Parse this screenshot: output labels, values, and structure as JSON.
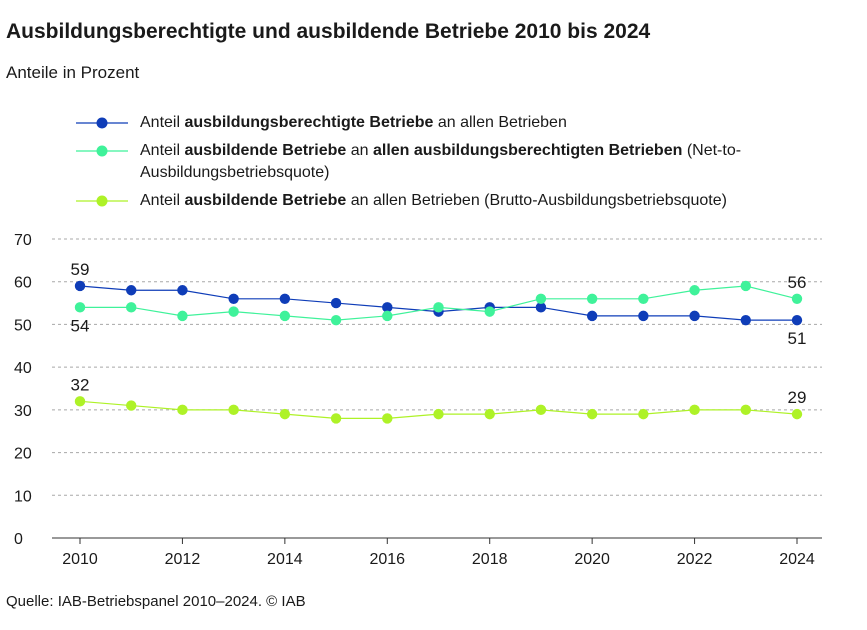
{
  "header": {
    "title": "Ausbildungsberechtigte und ausbildende Betriebe 2010 bis 2024",
    "subtitle": "Anteile in Prozent"
  },
  "legend": {
    "items": [
      {
        "parts": [
          {
            "t": "Anteil ",
            "b": false
          },
          {
            "t": "ausbildungsberechtigte Betriebe",
            "b": true
          },
          {
            "t": " an allen Betrieben",
            "b": false
          }
        ]
      },
      {
        "parts": [
          {
            "t": "Anteil ",
            "b": false
          },
          {
            "t": "ausbildende Betriebe",
            "b": true
          },
          {
            "t": " an ",
            "b": false
          },
          {
            "t": "allen ausbildungsberechtigten Betrieben",
            "b": true
          },
          {
            "t": " (Net-to-Ausbildungsbetriebsquote)",
            "b": false
          }
        ]
      },
      {
        "parts": [
          {
            "t": "Anteil ",
            "b": false
          },
          {
            "t": "ausbildende Betriebe",
            "b": true
          },
          {
            "t": " an allen Betrieben (Brutto-Ausbildungsbetriebsquote)",
            "b": false
          }
        ]
      }
    ]
  },
  "footer": {
    "source": "Quelle: IAB-Betriebspanel 2010–2024.  © IAB"
  },
  "chart_data": {
    "type": "line",
    "x": [
      2010,
      2011,
      2012,
      2013,
      2014,
      2015,
      2016,
      2017,
      2018,
      2019,
      2020,
      2021,
      2022,
      2023,
      2024
    ],
    "xticks": [
      "2010",
      "2012",
      "2014",
      "2016",
      "2018",
      "2020",
      "2022",
      "2024"
    ],
    "yticks": [
      "0",
      "10",
      "20",
      "30",
      "40",
      "50",
      "60",
      "70"
    ],
    "ylim": [
      0,
      70
    ],
    "grid": true,
    "legend_position": "top",
    "series": [
      {
        "name": "Anteil ausbildungsberechtigte Betriebe an allen Betrieben",
        "color": "#0f3db8",
        "values": [
          59,
          58,
          58,
          56,
          56,
          55,
          54,
          53,
          54,
          54,
          52,
          52,
          52,
          51,
          51
        ],
        "labels": [
          {
            "year": 2010,
            "text": "59",
            "pos": "above"
          },
          {
            "year": 2024,
            "text": "51",
            "pos": "below"
          }
        ]
      },
      {
        "name": "Anteil ausbildende Betriebe an allen ausbildungsberechtigten Betrieben (Netto-Ausbildungsbetriebsquote)",
        "color": "#3ff29a",
        "values": [
          54,
          54,
          52,
          53,
          52,
          51,
          52,
          54,
          53,
          56,
          56,
          56,
          58,
          59,
          56
        ],
        "labels": [
          {
            "year": 2010,
            "text": "54",
            "pos": "below"
          },
          {
            "year": 2024,
            "text": "56",
            "pos": "above"
          }
        ]
      },
      {
        "name": "Anteil ausbildende Betriebe an allen Betrieben (Brutto-Ausbildungsbetriebsquote)",
        "color": "#aef227",
        "values": [
          32,
          31,
          30,
          30,
          29,
          28,
          28,
          29,
          29,
          30,
          29,
          29,
          30,
          30,
          29
        ],
        "labels": [
          {
            "year": 2010,
            "text": "32",
            "pos": "above"
          },
          {
            "year": 2024,
            "text": "29",
            "pos": "above"
          }
        ]
      }
    ]
  }
}
